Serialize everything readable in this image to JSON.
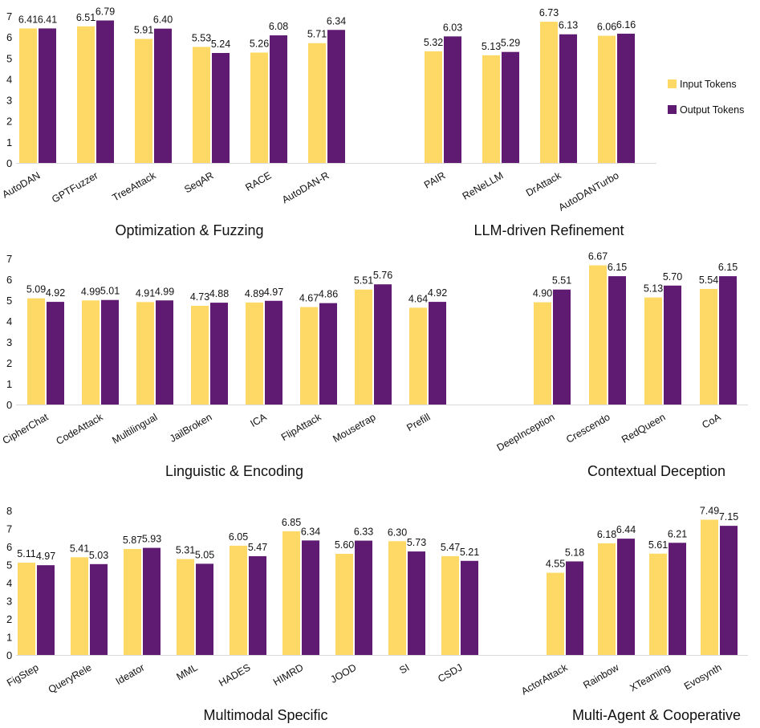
{
  "legend": [
    {
      "name": "Input Tokens",
      "color": "#FFD966"
    },
    {
      "name": "Output Tokens",
      "color": "#5F1A72"
    }
  ],
  "chart_data": [
    {
      "type": "bar",
      "yticks": [
        0,
        1,
        2,
        3,
        4,
        5,
        6,
        7
      ],
      "ylim": [
        0,
        7
      ],
      "groups": [
        {
          "title": "Optimization & Fuzzing",
          "categories": [
            "AutoDAN",
            "GPTFuzzer",
            "TreeAttack",
            "SeqAR",
            "RACE",
            "AutoDAN-R"
          ],
          "series": [
            {
              "name": "Input Tokens",
              "values": [
                6.41,
                6.51,
                5.91,
                5.53,
                5.26,
                5.71
              ]
            },
            {
              "name": "Output Tokens",
              "values": [
                6.41,
                6.79,
                6.4,
                5.24,
                6.08,
                6.34
              ]
            }
          ]
        },
        {
          "title": "LLM-driven Refinement",
          "categories": [
            "PAIR",
            "ReNeLLM",
            "DrAttack",
            "AutoDANTurbo"
          ],
          "series": [
            {
              "name": "Input Tokens",
              "values": [
                5.32,
                5.13,
                6.73,
                6.06
              ]
            },
            {
              "name": "Output Tokens",
              "values": [
                6.03,
                5.29,
                6.13,
                6.16
              ]
            }
          ]
        }
      ]
    },
    {
      "type": "bar",
      "yticks": [
        0,
        1,
        2,
        3,
        4,
        5,
        6,
        7
      ],
      "ylim": [
        0,
        7
      ],
      "groups": [
        {
          "title": "Linguistic & Encoding",
          "categories": [
            "CipherChat",
            "CodeAttack",
            "Multilingual",
            "JailBroken",
            "ICA",
            "FlipAttack",
            "Mousetrap",
            "Prefill"
          ],
          "series": [
            {
              "name": "Input Tokens",
              "values": [
                5.09,
                4.99,
                4.91,
                4.73,
                4.89,
                4.67,
                5.51,
                4.64
              ]
            },
            {
              "name": "Output Tokens",
              "values": [
                4.92,
                5.01,
                4.99,
                4.88,
                4.97,
                4.86,
                5.76,
                4.92
              ]
            }
          ]
        },
        {
          "title": "Contextual Deception",
          "categories": [
            "DeepInception",
            "Crescendo",
            "RedQueen",
            "CoA"
          ],
          "series": [
            {
              "name": "Input Tokens",
              "values": [
                4.9,
                6.67,
                5.13,
                5.54
              ]
            },
            {
              "name": "Output Tokens",
              "values": [
                5.51,
                6.15,
                5.7,
                6.15
              ]
            }
          ]
        }
      ]
    },
    {
      "type": "bar",
      "yticks": [
        0,
        1,
        2,
        3,
        4,
        5,
        6,
        7,
        8
      ],
      "ylim": [
        0,
        8
      ],
      "groups": [
        {
          "title": "Multimodal Specific",
          "categories": [
            "FigStep",
            "QueryRele",
            "Ideator",
            "MML",
            "HADES",
            "HIMRD",
            "JOOD",
            "SI",
            "CSDJ"
          ],
          "series": [
            {
              "name": "Input Tokens",
              "values": [
                5.11,
                5.41,
                5.87,
                5.31,
                6.05,
                6.85,
                5.6,
                6.3,
                5.47
              ]
            },
            {
              "name": "Output Tokens",
              "values": [
                4.97,
                5.03,
                5.93,
                5.05,
                5.47,
                6.34,
                6.33,
                5.73,
                5.21
              ]
            }
          ]
        },
        {
          "title": "Multi-Agent & Cooperative",
          "categories": [
            "ActorAttack",
            "Rainbow",
            "XTeaming",
            "Evosynth"
          ],
          "series": [
            {
              "name": "Input Tokens",
              "values": [
                4.55,
                6.18,
                5.61,
                7.49
              ]
            },
            {
              "name": "Output Tokens",
              "values": [
                5.18,
                6.44,
                6.21,
                7.15
              ]
            }
          ]
        }
      ]
    }
  ]
}
